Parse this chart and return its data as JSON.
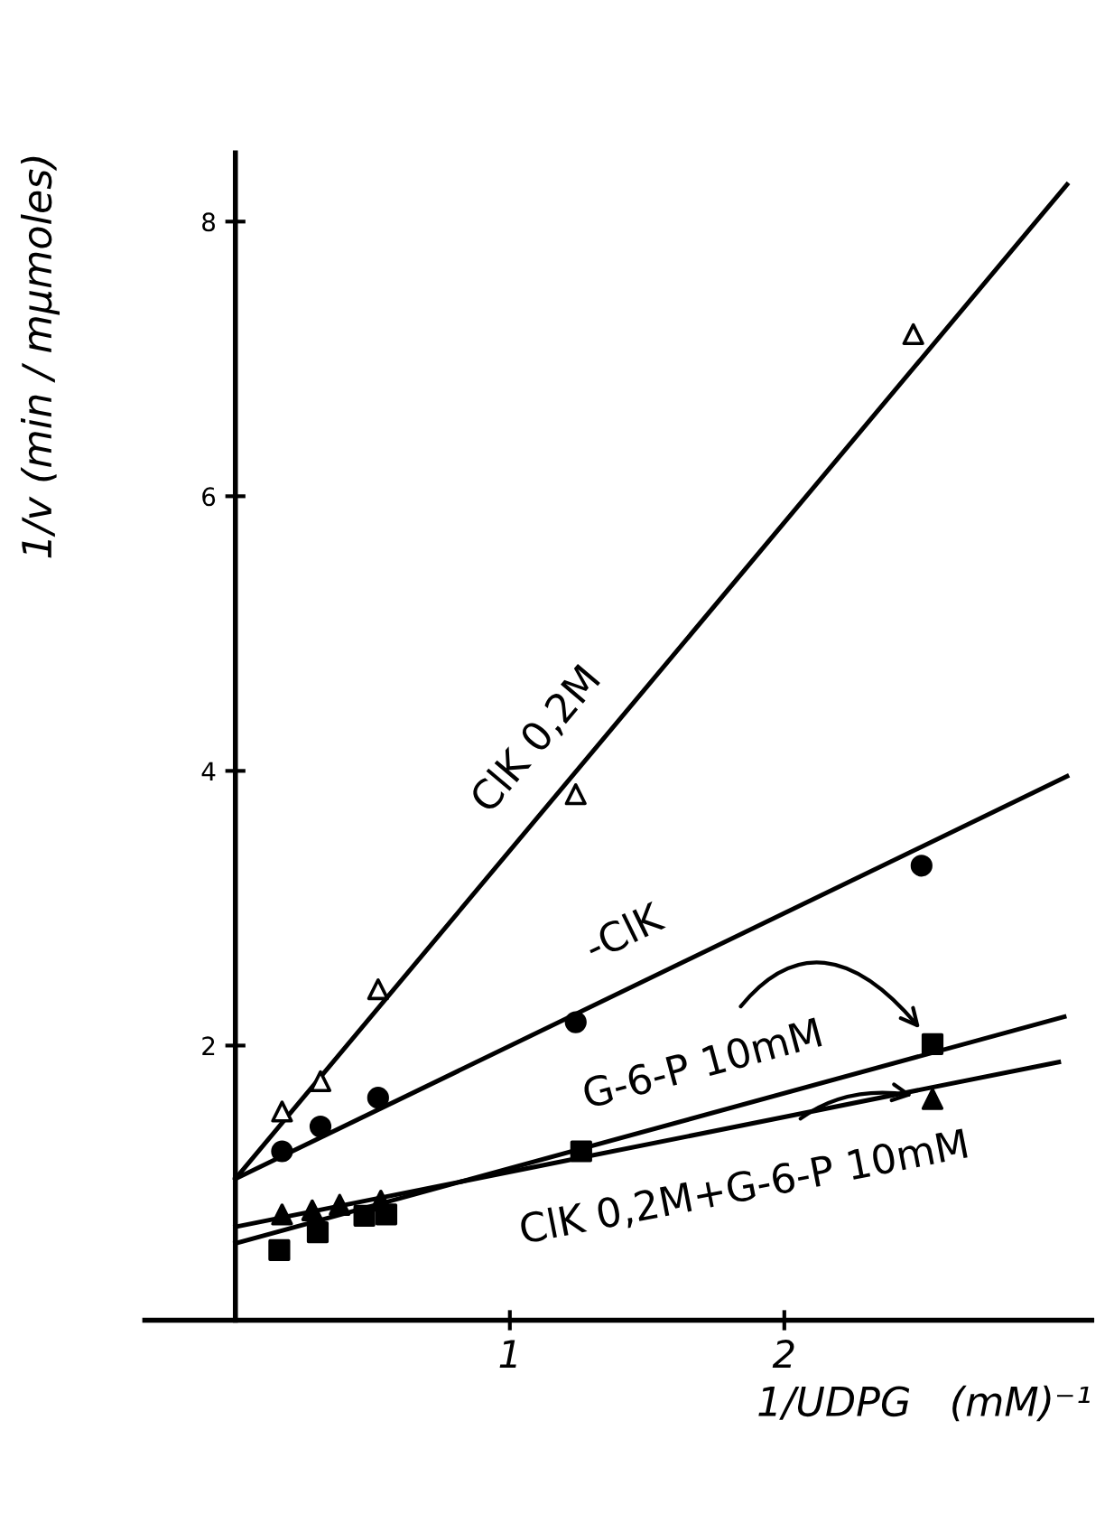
{
  "chart_data": {
    "type": "scatter",
    "xlabel": "1/UDPG   (mM)⁻¹",
    "ylabel": "1/v (min / mμmoles)",
    "xlim": [
      -0.33,
      3.12
    ],
    "ylim": [
      0,
      8.5
    ],
    "xticks": [
      1,
      2
    ],
    "yticks": [
      2,
      4,
      6,
      8
    ],
    "grid": false,
    "legend": false,
    "series": [
      {
        "marker": "triangle",
        "color": "#ffffff",
        "x": [
          0.17,
          0.31,
          0.52,
          1.24,
          2.47
        ],
        "values": [
          1.52,
          1.74,
          2.41,
          3.83,
          7.18
        ]
      },
      {
        "marker": "circle",
        "color": "#000000",
        "x": [
          0.17,
          0.31,
          0.52,
          1.24,
          2.5
        ],
        "values": [
          1.23,
          1.41,
          1.62,
          2.17,
          3.31
        ]
      },
      {
        "marker": "square",
        "color": "#000000",
        "x": [
          0.16,
          0.3,
          0.47,
          0.55,
          1.26,
          2.54
        ],
        "values": [
          0.51,
          0.64,
          0.76,
          0.77,
          1.23,
          2.01
        ]
      },
      {
        "marker": "triangle",
        "color": "#000000",
        "x": [
          0.17,
          0.28,
          0.38,
          0.53,
          1.26,
          2.54
        ],
        "values": [
          0.77,
          0.8,
          0.84,
          0.87,
          null,
          1.61
        ]
      },
      {
        "type": "line",
        "name": "ClK 0,2M",
        "color": "#000000",
        "x": [
          0,
          3.03
        ],
        "values": [
          1.03,
          8.27
        ]
      },
      {
        "type": "line",
        "name": "-ClK",
        "color": "#000000",
        "x": [
          0,
          3.03
        ],
        "values": [
          1.03,
          3.96
        ]
      },
      {
        "type": "line",
        "color": "#000000",
        "x": [
          0,
          3.02
        ],
        "values": [
          0.56,
          2.21
        ]
      },
      {
        "type": "line",
        "color": "#000000",
        "x": [
          0,
          3.0
        ],
        "values": [
          0.68,
          1.88
        ]
      }
    ],
    "annotations": [
      {
        "text": "G-6-P 10mM",
        "x": 2.54,
        "y": 2.01
      },
      {
        "text": "ClK 0,2M+G-6-P 10mM",
        "x": 2.54,
        "y": 1.61
      }
    ]
  }
}
